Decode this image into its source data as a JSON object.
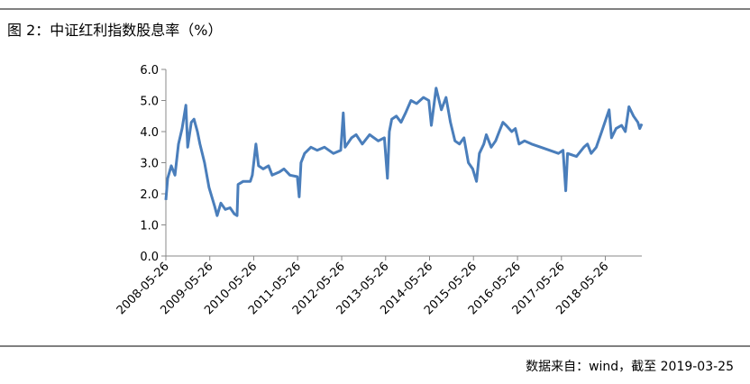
{
  "chart_data": {
    "type": "line",
    "title": "图 2：中证红利指数股息率（%）",
    "source": "数据来自：wind，截至 2019-03-25",
    "color": "#4a7ebb",
    "x": [
      "2008-05-26",
      "2008-06-10",
      "2008-07-10",
      "2008-08-10",
      "2008-09-08",
      "2008-10-08",
      "2008-11-08",
      "2008-11-23",
      "2008-12-23",
      "2009-01-15",
      "2009-02-12",
      "2009-03-05",
      "2009-04-12",
      "2009-05-20",
      "2009-07-05",
      "2009-07-26",
      "2009-08-26",
      "2009-10-02",
      "2009-11-10",
      "2009-12-16",
      "2010-01-08",
      "2010-01-16",
      "2010-02-28",
      "2010-04-28",
      "2010-05-14",
      "2010-06-13",
      "2010-07-05",
      "2010-08-12",
      "2010-09-26",
      "2010-10-26",
      "2010-12-26",
      "2011-02-01",
      "2011-03-23",
      "2011-05-23",
      "2011-06-08",
      "2011-06-23",
      "2011-07-23",
      "2011-09-13",
      "2011-11-04",
      "2012-01-04",
      "2012-03-18",
      "2012-05-18",
      "2012-06-08",
      "2012-06-23",
      "2012-08-16",
      "2012-09-23",
      "2012-11-13",
      "2013-01-13",
      "2013-03-26",
      "2013-05-16",
      "2013-06-10",
      "2013-06-26",
      "2013-07-16",
      "2013-08-23",
      "2013-10-01",
      "2013-11-08",
      "2013-12-23",
      "2014-02-08",
      "2014-04-05",
      "2014-05-20",
      "2014-06-10",
      "2014-07-20",
      "2014-09-01",
      "2014-10-10",
      "2014-11-16",
      "2014-12-23",
      "2015-01-30",
      "2015-03-08",
      "2015-04-14",
      "2015-05-20",
      "2015-06-20",
      "2015-07-14",
      "2015-08-20",
      "2015-09-10",
      "2015-10-20",
      "2015-11-26",
      "2015-12-26",
      "2016-01-26",
      "2016-02-22",
      "2016-04-08",
      "2016-05-08",
      "2016-06-08",
      "2016-07-23",
      "2016-09-20",
      "2016-12-05",
      "2017-02-16",
      "2017-05-01",
      "2017-06-08",
      "2017-07-01",
      "2017-07-16",
      "2017-09-28",
      "2017-11-28",
      "2017-12-28",
      "2018-01-28",
      "2018-03-12",
      "2018-04-26",
      "2018-06-26",
      "2018-07-16",
      "2018-08-23",
      "2018-10-08",
      "2018-11-08",
      "2018-12-08",
      "2019-01-15",
      "2019-02-20",
      "2019-03-08",
      "2019-03-25"
    ],
    "values": [
      1.8,
      2.5,
      2.9,
      2.6,
      3.6,
      4.1,
      4.85,
      3.5,
      4.3,
      4.4,
      4.0,
      3.6,
      3.0,
      2.2,
      1.6,
      1.3,
      1.7,
      1.5,
      1.55,
      1.35,
      1.3,
      2.3,
      2.4,
      2.4,
      2.6,
      3.6,
      2.9,
      2.8,
      2.9,
      2.6,
      2.7,
      2.8,
      2.6,
      2.55,
      1.9,
      3.0,
      3.3,
      3.5,
      3.4,
      3.5,
      3.3,
      3.4,
      4.6,
      3.5,
      3.8,
      3.9,
      3.6,
      3.9,
      3.7,
      3.8,
      2.5,
      4.0,
      4.4,
      4.5,
      4.3,
      4.6,
      5.0,
      4.9,
      5.1,
      5.0,
      4.2,
      5.4,
      4.7,
      5.1,
      4.3,
      3.7,
      3.6,
      3.8,
      3.0,
      2.8,
      2.4,
      3.3,
      3.6,
      3.9,
      3.5,
      3.7,
      4.0,
      4.3,
      4.2,
      4.0,
      4.1,
      3.6,
      3.7,
      3.6,
      3.5,
      3.4,
      3.3,
      3.4,
      2.1,
      3.3,
      3.2,
      3.5,
      3.6,
      3.3,
      3.5,
      4.0,
      4.7,
      3.8,
      4.1,
      4.2,
      4.0,
      4.8,
      4.5,
      4.3,
      4.1,
      4.25
    ],
    "xlim": [
      "2008-05-26",
      "2019-03-25"
    ],
    "xticks": [
      "2008-05-26",
      "2009-05-26",
      "2010-05-26",
      "2011-05-26",
      "2012-05-26",
      "2013-05-26",
      "2014-05-26",
      "2015-05-26",
      "2016-05-26",
      "2017-05-26",
      "2018-05-26"
    ],
    "ylim": [
      0,
      6
    ],
    "yticks": [
      {
        "value": 0,
        "label": "0.0"
      },
      {
        "value": 1,
        "label": "1.0"
      },
      {
        "value": 2,
        "label": "2.0"
      },
      {
        "value": 3,
        "label": "3.0"
      },
      {
        "value": 4,
        "label": "4.0"
      },
      {
        "value": 5,
        "label": "5.0"
      },
      {
        "value": 6,
        "label": "6.0"
      }
    ],
    "grid": false
  }
}
